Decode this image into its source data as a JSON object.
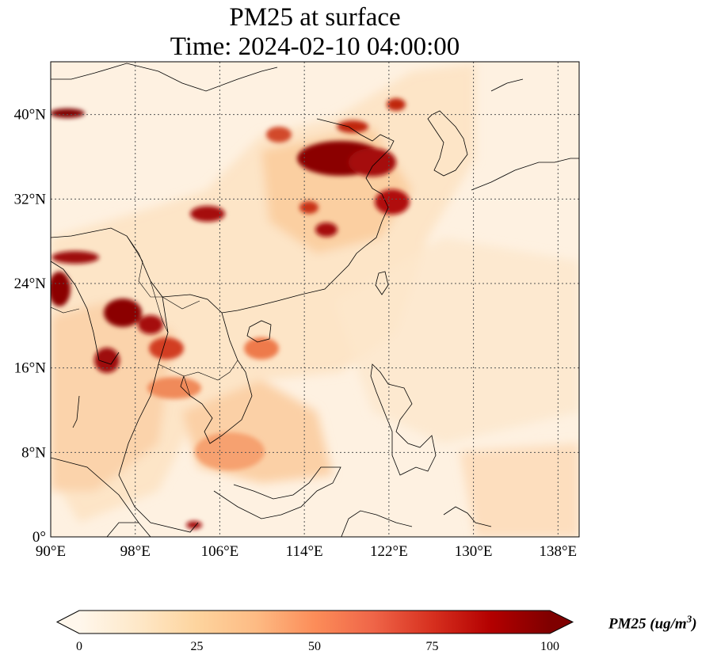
{
  "title": {
    "line1": "PM25 at surface",
    "line2": "Time: 2024-02-10 04:00:00"
  },
  "map": {
    "extent": {
      "lon_min": 90,
      "lon_max": 140,
      "lat_min": 0,
      "lat_max": 45
    },
    "gridlines": "dotted",
    "lon_ticks": [
      {
        "value": 90,
        "label": "90°E"
      },
      {
        "value": 98,
        "label": "98°E"
      },
      {
        "value": 106,
        "label": "106°E"
      },
      {
        "value": 114,
        "label": "114°E"
      },
      {
        "value": 122,
        "label": "122°E"
      },
      {
        "value": 130,
        "label": "130°E"
      },
      {
        "value": 138,
        "label": "138°E"
      }
    ],
    "lat_ticks": [
      {
        "value": 0,
        "label": "0°"
      },
      {
        "value": 8,
        "label": "8°N"
      },
      {
        "value": 16,
        "label": "16°N"
      },
      {
        "value": 24,
        "label": "24°N"
      },
      {
        "value": 32,
        "label": "32°N"
      },
      {
        "value": 40,
        "label": "40°N"
      }
    ]
  },
  "colorbar": {
    "label_main": "PM25 (ug/m",
    "label_sup": "3",
    "label_end": ")",
    "min": 0,
    "max": 100,
    "ticks": [
      {
        "value": 0,
        "label": "0"
      },
      {
        "value": 25,
        "label": "25"
      },
      {
        "value": 50,
        "label": "50"
      },
      {
        "value": 75,
        "label": "75"
      },
      {
        "value": 100,
        "label": "100"
      }
    ],
    "extend": "both",
    "colormap": [
      "#fff7ec",
      "#fee8c8",
      "#fdd49e",
      "#fdbb84",
      "#fc8d59",
      "#ef6548",
      "#d7301f",
      "#b30000",
      "#7f0000"
    ]
  }
}
